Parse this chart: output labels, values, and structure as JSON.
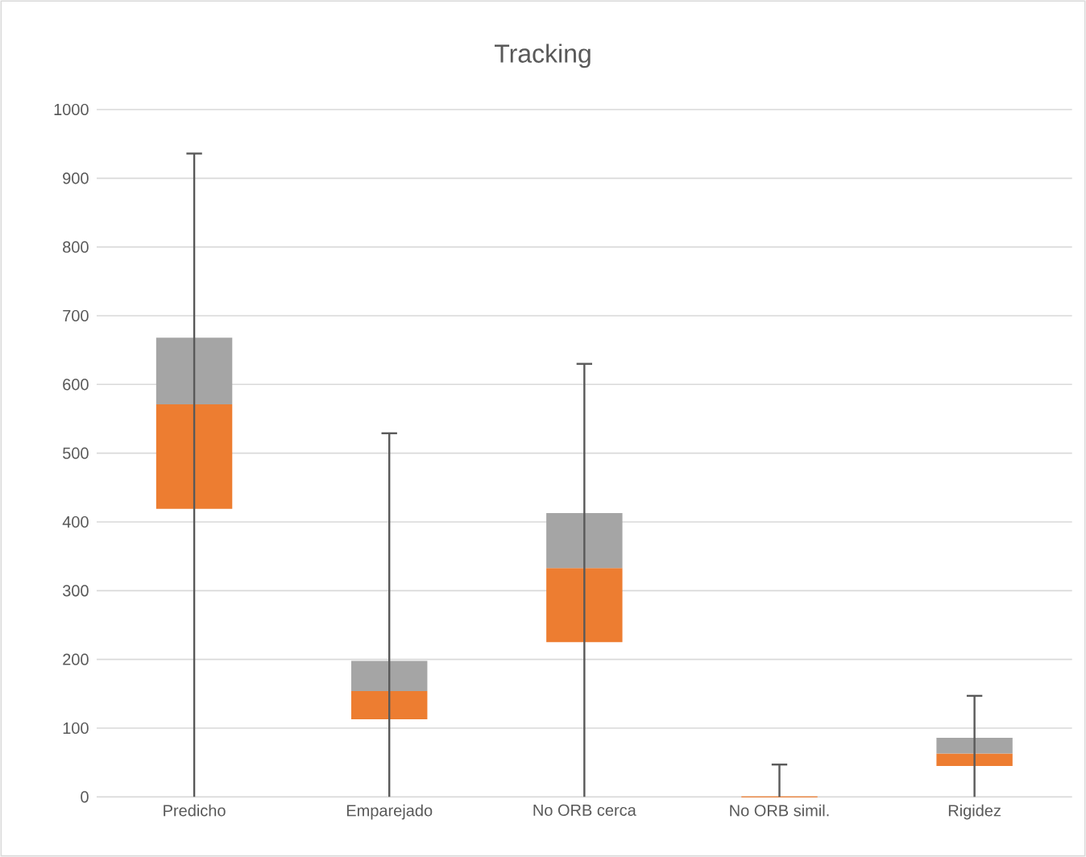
{
  "chart_data": {
    "type": "box",
    "title": "Tracking",
    "categories": [
      "Predicho",
      "Emparejado",
      "No ORB cerca",
      "No ORB simil.",
      "Rigidez"
    ],
    "series": [
      {
        "color": "#ed7d31",
        "boxes": [
          {
            "low": 0,
            "q1": 419,
            "median": 571,
            "q3": 668,
            "high": 936
          },
          {
            "low": 0,
            "q1": 113,
            "median": 154,
            "q3": 198,
            "high": 529
          },
          {
            "low": 0,
            "q1": 225,
            "median": 333,
            "q3": 413,
            "high": 630
          },
          {
            "low": 0,
            "q1": 0,
            "median": 0,
            "q3": 0,
            "high": 47
          },
          {
            "low": 0,
            "q1": 45,
            "median": 63,
            "q3": 86,
            "high": 147
          }
        ]
      }
    ],
    "ylim": [
      0,
      1000
    ],
    "yticks": [
      0,
      100,
      200,
      300,
      400,
      500,
      600,
      700,
      800,
      900,
      1000
    ],
    "grid": "y"
  }
}
